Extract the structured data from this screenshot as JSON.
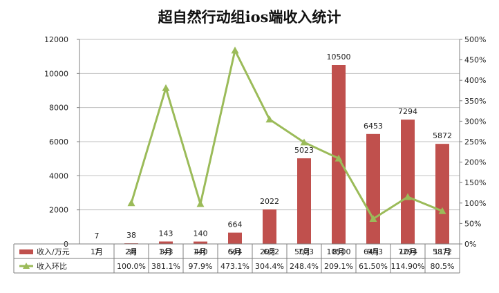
{
  "colors": {
    "bar": "#c0504d",
    "line": "#9bbb59",
    "grid": "#bfbfbf",
    "axis": "#7f7f7f",
    "background": "#ffffff"
  },
  "chart_data": {
    "type": "bar",
    "title": "超自然行动组ios端收入统计",
    "categories": [
      "1月",
      "2月",
      "3月",
      "4月",
      "5月",
      "6月",
      "7月",
      "8月",
      "9月",
      "10月",
      "11月"
    ],
    "series": [
      {
        "name": "收入/万元",
        "type": "bar",
        "axis": "left",
        "color": "#c0504d",
        "values": [
          7,
          38,
          143,
          140,
          664,
          2022,
          5023,
          10500,
          6453,
          7294,
          5872
        ],
        "labels": [
          "7",
          "38",
          "143",
          "140",
          "664",
          "2022",
          "5023",
          "10500",
          "6453",
          "7294",
          "5872"
        ]
      },
      {
        "name": "收入环比",
        "type": "line",
        "marker": "triangle",
        "axis": "right",
        "color": "#9bbb59",
        "values": [
          null,
          100.0,
          381.1,
          97.9,
          473.1,
          304.4,
          248.4,
          209.1,
          61.5,
          114.9,
          80.5
        ],
        "labels": [
          "",
          "100.0%",
          "381.1%",
          "97.9%",
          "473.1%",
          "304.4%",
          "248.4%",
          "209.1%",
          "61.50%",
          "114.90%",
          "80.5%"
        ]
      }
    ],
    "y_left": {
      "ylim": [
        0,
        12000
      ],
      "ticks": [
        0,
        2000,
        4000,
        6000,
        8000,
        10000,
        12000
      ],
      "tick_labels": [
        "0",
        "2000",
        "4000",
        "6000",
        "8000",
        "10000",
        "12000"
      ]
    },
    "y_right": {
      "ylim": [
        0,
        500
      ],
      "ticks": [
        0,
        50,
        100,
        150,
        200,
        250,
        300,
        350,
        400,
        450,
        500
      ],
      "tick_labels": [
        "0%",
        "50%",
        "100%",
        "150%",
        "200%",
        "250%",
        "300%",
        "350%",
        "400%",
        "450%",
        "500%"
      ]
    },
    "grid": true,
    "legend": "data-table-below"
  }
}
